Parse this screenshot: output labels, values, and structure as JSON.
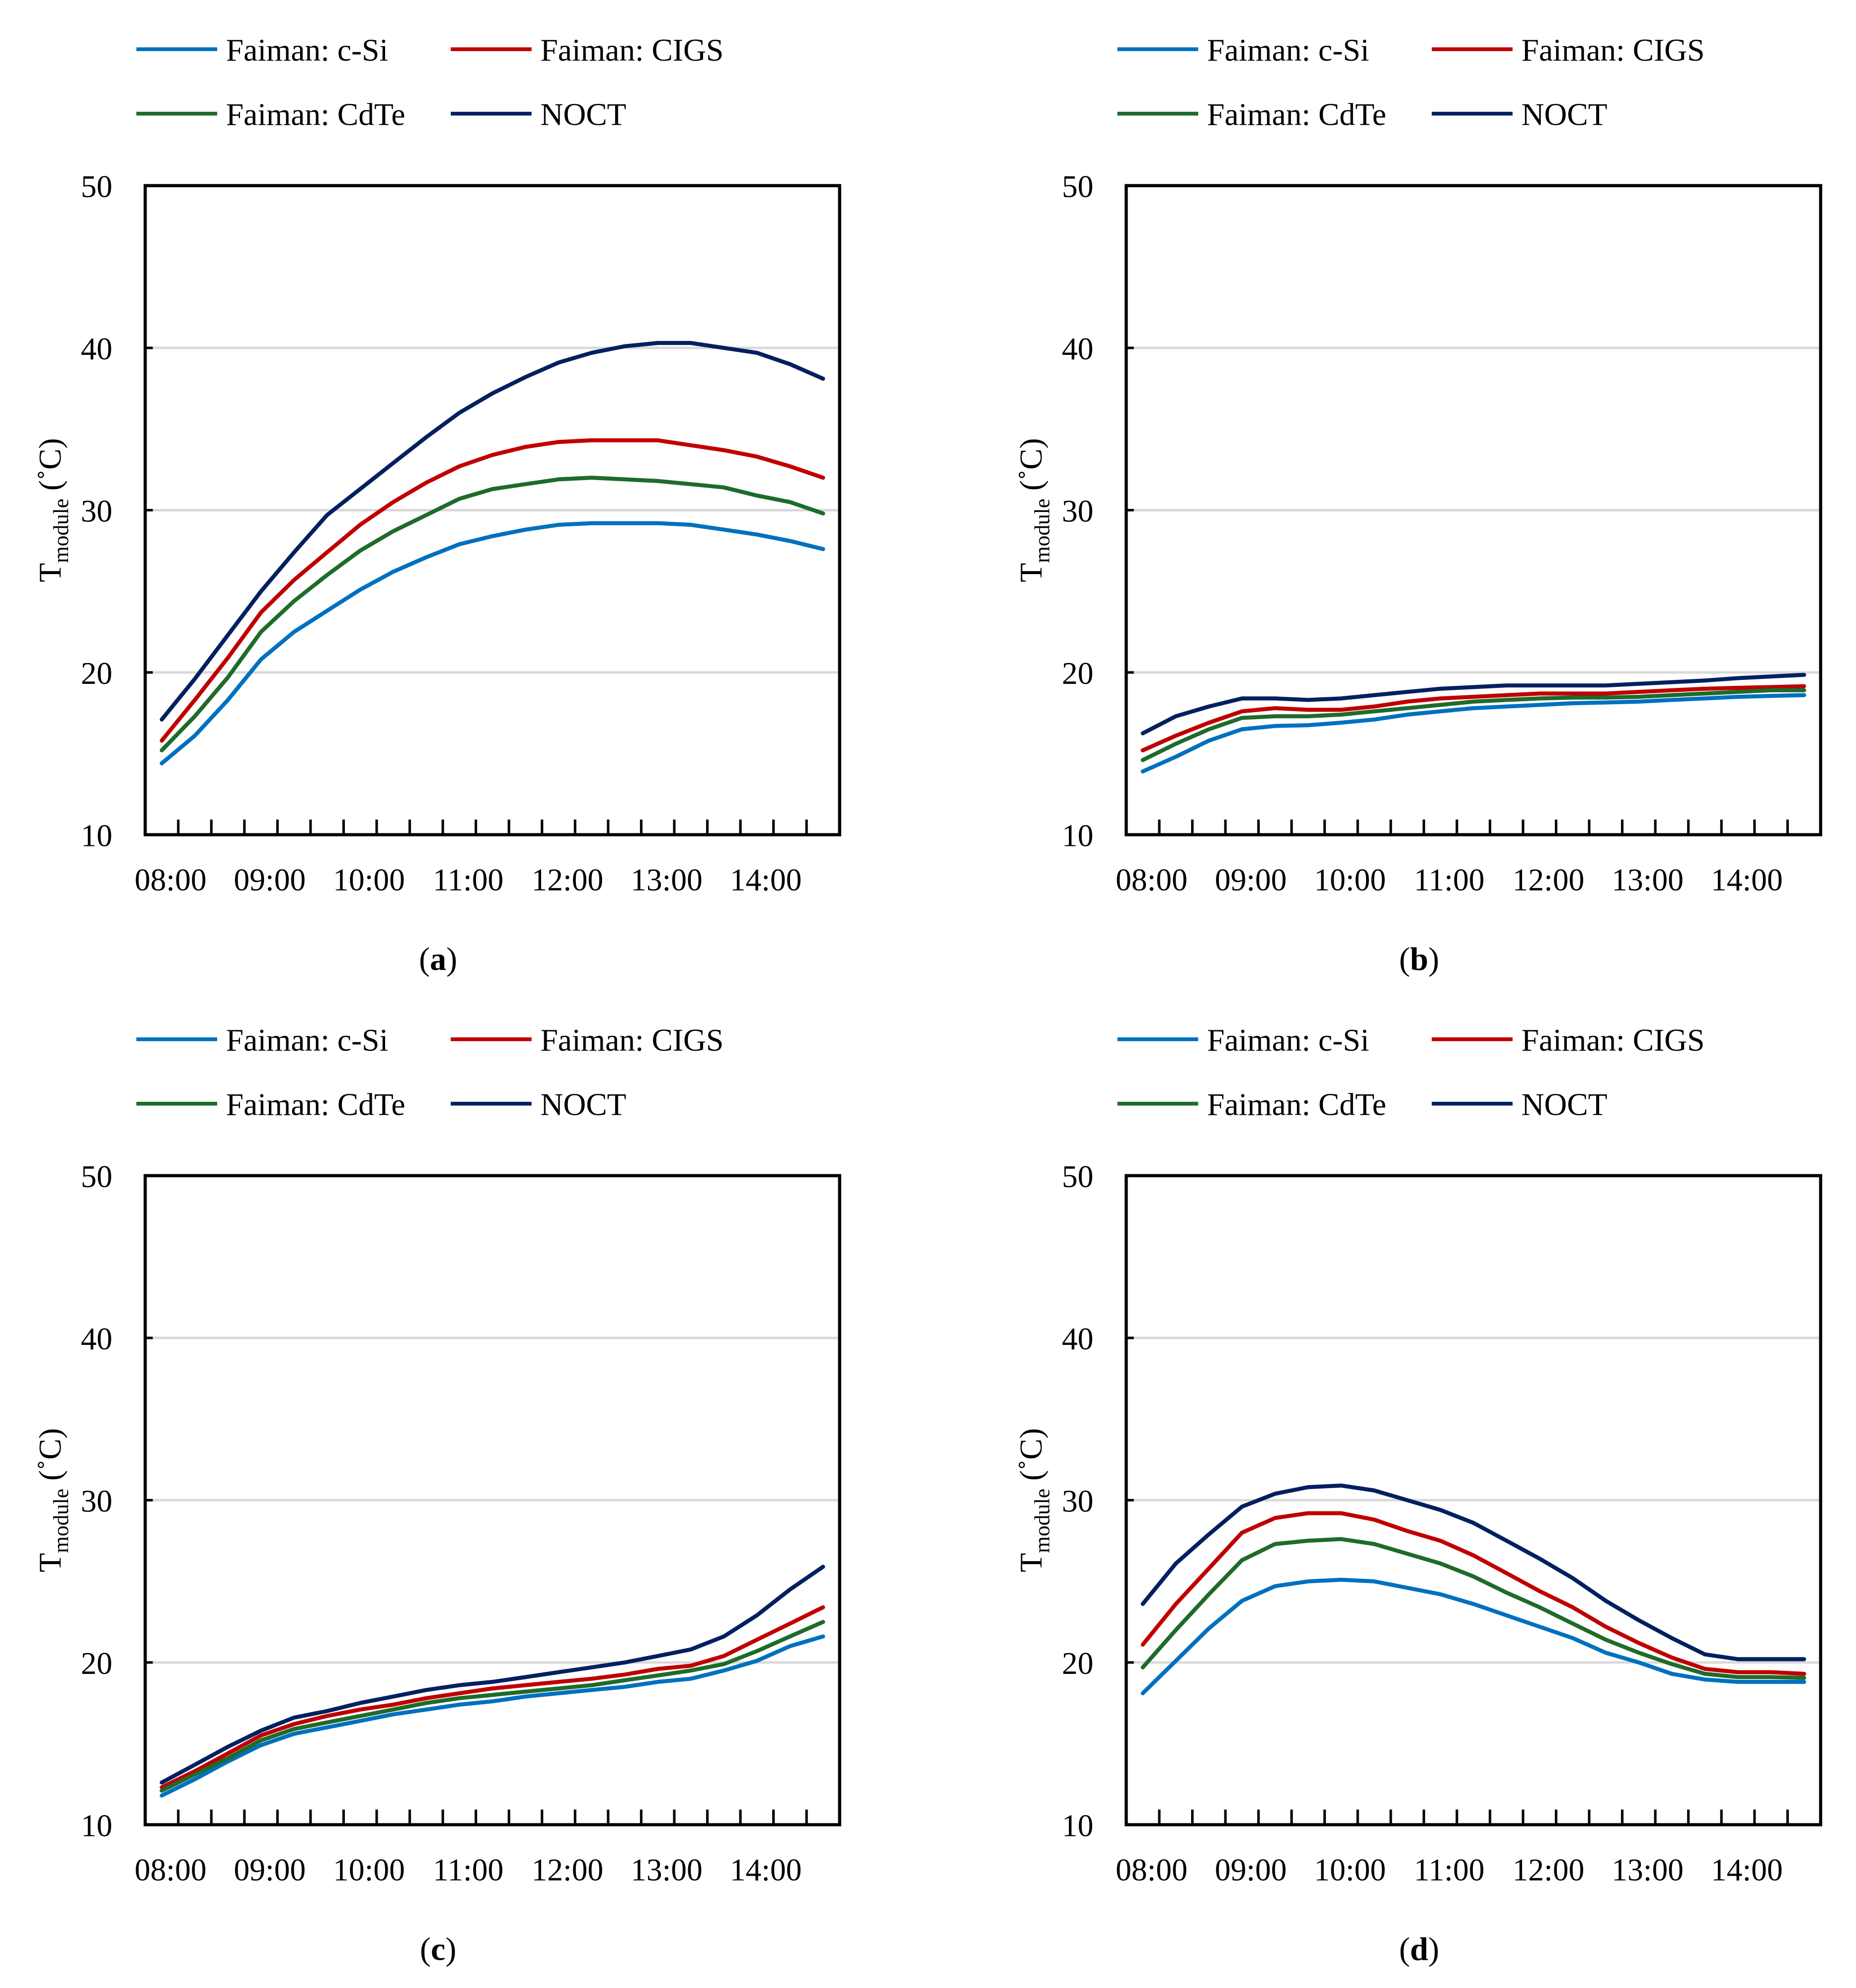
{
  "colors": {
    "c-Si": "#0070C0",
    "CIGS": "#C00000",
    "CdTe": "#1E6B2A",
    "NOCT": "#002060",
    "grid": "#D9D9D9"
  },
  "legend": [
    "Faiman: c-Si",
    "Faiman: CIGS",
    "Faiman: CdTe",
    "NOCT"
  ],
  "chart_data": [
    {
      "type": "line",
      "panel": "(a)",
      "panel_letter": "a",
      "ylabel": "T",
      "ylabel_sub": "module",
      "ylabel_unit": " (˚C)",
      "ylim": [
        10,
        50
      ],
      "yticks": [
        10,
        20,
        30,
        40,
        50
      ],
      "grid": true,
      "legend_position": "top",
      "categories": [
        "08:00",
        "08:20",
        "08:40",
        "09:00",
        "09:20",
        "09:40",
        "10:00",
        "10:20",
        "10:40",
        "11:00",
        "11:20",
        "11:40",
        "12:00",
        "12:20",
        "12:40",
        "13:00",
        "13:20",
        "13:40",
        "14:00",
        "14:20",
        "14:40"
      ],
      "xtick_labels": [
        "08:00",
        "09:00",
        "10:00",
        "11:00",
        "12:00",
        "13:00",
        "14:00"
      ],
      "series": [
        {
          "name": "Faiman: c-Si",
          "key": "c-Si",
          "values": [
            14.4,
            16.1,
            18.3,
            20.8,
            22.5,
            23.8,
            25.1,
            26.2,
            27.1,
            27.9,
            28.4,
            28.8,
            29.1,
            29.2,
            29.2,
            29.2,
            29.1,
            28.8,
            28.5,
            28.1,
            27.6
          ]
        },
        {
          "name": "Faiman: CIGS",
          "key": "CIGS",
          "values": [
            15.8,
            18.3,
            20.9,
            23.7,
            25.7,
            27.4,
            29.1,
            30.5,
            31.7,
            32.7,
            33.4,
            33.9,
            34.2,
            34.3,
            34.3,
            34.3,
            34.0,
            33.7,
            33.3,
            32.7,
            32.0
          ]
        },
        {
          "name": "Faiman: CdTe",
          "key": "CdTe",
          "values": [
            15.2,
            17.3,
            19.7,
            22.5,
            24.4,
            26.0,
            27.5,
            28.7,
            29.7,
            30.7,
            31.3,
            31.6,
            31.9,
            32.0,
            31.9,
            31.8,
            31.6,
            31.4,
            30.9,
            30.5,
            29.8
          ]
        },
        {
          "name": "NOCT",
          "key": "NOCT",
          "values": [
            17.1,
            19.6,
            22.3,
            25.0,
            27.4,
            29.7,
            31.3,
            32.9,
            34.5,
            36.0,
            37.2,
            38.2,
            39.1,
            39.7,
            40.1,
            40.3,
            40.3,
            40.0,
            39.7,
            39.0,
            38.1
          ]
        }
      ]
    },
    {
      "type": "line",
      "panel": "(b)",
      "panel_letter": "b",
      "ylabel": "T",
      "ylabel_sub": "module",
      "ylabel_unit": " (˚C)",
      "ylim": [
        10,
        50
      ],
      "yticks": [
        10,
        20,
        30,
        40,
        50
      ],
      "grid": true,
      "legend_position": "top",
      "categories": [
        "08:00",
        "08:20",
        "08:40",
        "09:00",
        "09:20",
        "09:40",
        "10:00",
        "10:20",
        "10:40",
        "11:00",
        "11:20",
        "11:40",
        "12:00",
        "12:20",
        "12:40",
        "13:00",
        "13:20",
        "13:40",
        "14:00",
        "14:20",
        "14:40"
      ],
      "xtick_labels": [
        "08:00",
        "09:00",
        "10:00",
        "11:00",
        "12:00",
        "13:00",
        "14:00"
      ],
      "series": [
        {
          "name": "Faiman: c-Si",
          "key": "c-Si",
          "values": [
            13.9,
            14.8,
            15.8,
            16.5,
            16.7,
            16.75,
            16.9,
            17.1,
            17.4,
            17.6,
            17.8,
            17.9,
            18.0,
            18.1,
            18.15,
            18.2,
            18.3,
            18.4,
            18.5,
            18.55,
            18.6
          ]
        },
        {
          "name": "Faiman: CIGS",
          "key": "CIGS",
          "values": [
            15.2,
            16.1,
            16.9,
            17.6,
            17.8,
            17.7,
            17.7,
            17.9,
            18.2,
            18.4,
            18.5,
            18.6,
            18.7,
            18.7,
            18.7,
            18.8,
            18.9,
            19.0,
            19.05,
            19.1,
            19.15
          ]
        },
        {
          "name": "Faiman: CdTe",
          "key": "CdTe",
          "values": [
            14.6,
            15.6,
            16.5,
            17.2,
            17.3,
            17.3,
            17.4,
            17.6,
            17.8,
            18.0,
            18.2,
            18.3,
            18.4,
            18.45,
            18.45,
            18.5,
            18.6,
            18.7,
            18.8,
            18.9,
            18.9
          ]
        },
        {
          "name": "NOCT",
          "key": "NOCT",
          "values": [
            16.25,
            17.3,
            17.9,
            18.4,
            18.4,
            18.3,
            18.4,
            18.6,
            18.8,
            19.0,
            19.1,
            19.2,
            19.2,
            19.2,
            19.2,
            19.3,
            19.4,
            19.5,
            19.65,
            19.75,
            19.85
          ]
        }
      ]
    },
    {
      "type": "line",
      "panel": "(c)",
      "panel_letter": "c",
      "ylabel": "T",
      "ylabel_sub": "module",
      "ylabel_unit": " (˚C)",
      "ylim": [
        10,
        50
      ],
      "yticks": [
        10,
        20,
        30,
        40,
        50
      ],
      "grid": true,
      "legend_position": "top",
      "categories": [
        "08:00",
        "08:20",
        "08:40",
        "09:00",
        "09:20",
        "09:40",
        "10:00",
        "10:20",
        "10:40",
        "11:00",
        "11:20",
        "11:40",
        "12:00",
        "12:20",
        "12:40",
        "13:00",
        "13:20",
        "13:40",
        "14:00",
        "14:20",
        "14:40"
      ],
      "xtick_labels": [
        "08:00",
        "09:00",
        "10:00",
        "11:00",
        "12:00",
        "13:00",
        "14:00"
      ],
      "series": [
        {
          "name": "Faiman: c-Si",
          "key": "c-Si",
          "values": [
            11.8,
            12.8,
            13.9,
            14.9,
            15.6,
            16.0,
            16.4,
            16.8,
            17.1,
            17.4,
            17.6,
            17.9,
            18.1,
            18.3,
            18.5,
            18.8,
            19.0,
            19.5,
            20.1,
            21.0,
            21.6
          ]
        },
        {
          "name": "Faiman: CIGS",
          "key": "CIGS",
          "values": [
            12.3,
            13.3,
            14.4,
            15.5,
            16.2,
            16.7,
            17.1,
            17.4,
            17.8,
            18.1,
            18.4,
            18.6,
            18.8,
            19.0,
            19.25,
            19.6,
            19.8,
            20.4,
            21.4,
            22.4,
            23.4
          ]
        },
        {
          "name": "Faiman: CdTe",
          "key": "CdTe",
          "values": [
            12.1,
            13.1,
            14.1,
            15.2,
            15.9,
            16.3,
            16.7,
            17.1,
            17.5,
            17.8,
            18.0,
            18.2,
            18.4,
            18.6,
            18.9,
            19.2,
            19.5,
            19.9,
            20.7,
            21.6,
            22.5
          ]
        },
        {
          "name": "NOCT",
          "key": "NOCT",
          "values": [
            12.6,
            13.7,
            14.8,
            15.8,
            16.6,
            17.0,
            17.5,
            17.9,
            18.3,
            18.6,
            18.8,
            19.1,
            19.4,
            19.7,
            20.0,
            20.4,
            20.8,
            21.6,
            22.9,
            24.5,
            25.9
          ]
        }
      ]
    },
    {
      "type": "line",
      "panel": "(d)",
      "panel_letter": "d",
      "ylabel": "T",
      "ylabel_sub": "module",
      "ylabel_unit": " (˚C)",
      "ylim": [
        10,
        50
      ],
      "yticks": [
        10,
        20,
        30,
        40,
        50
      ],
      "grid": true,
      "legend_position": "top",
      "categories": [
        "08:00",
        "08:20",
        "08:40",
        "09:00",
        "09:20",
        "09:40",
        "10:00",
        "10:20",
        "10:40",
        "11:00",
        "11:20",
        "11:40",
        "12:00",
        "12:20",
        "12:40",
        "13:00",
        "13:20",
        "13:40",
        "14:00",
        "14:20",
        "14:40"
      ],
      "xtick_labels": [
        "08:00",
        "09:00",
        "10:00",
        "11:00",
        "12:00",
        "13:00",
        "14:00"
      ],
      "series": [
        {
          "name": "Faiman: c-Si",
          "key": "c-Si",
          "values": [
            18.1,
            20.1,
            22.1,
            23.8,
            24.7,
            25.0,
            25.1,
            25.0,
            24.6,
            24.2,
            23.6,
            22.9,
            22.2,
            21.5,
            20.6,
            20.0,
            19.3,
            18.95,
            18.8,
            18.8,
            18.8
          ]
        },
        {
          "name": "Faiman: CIGS",
          "key": "CIGS",
          "values": [
            21.1,
            23.6,
            25.8,
            28.0,
            28.9,
            29.2,
            29.2,
            28.8,
            28.1,
            27.5,
            26.6,
            25.5,
            24.4,
            23.4,
            22.2,
            21.2,
            20.3,
            19.6,
            19.4,
            19.4,
            19.3
          ]
        },
        {
          "name": "Faiman: CdTe",
          "key": "CdTe",
          "values": [
            19.7,
            22.0,
            24.2,
            26.3,
            27.3,
            27.5,
            27.6,
            27.3,
            26.7,
            26.1,
            25.3,
            24.3,
            23.4,
            22.4,
            21.4,
            20.6,
            19.9,
            19.3,
            19.1,
            19.1,
            19.05
          ]
        },
        {
          "name": "NOCT",
          "key": "NOCT",
          "values": [
            23.6,
            26.1,
            27.9,
            29.6,
            30.4,
            30.8,
            30.9,
            30.6,
            30.0,
            29.4,
            28.6,
            27.5,
            26.4,
            25.2,
            23.8,
            22.6,
            21.5,
            20.5,
            20.2,
            20.2,
            20.2
          ]
        }
      ]
    }
  ]
}
